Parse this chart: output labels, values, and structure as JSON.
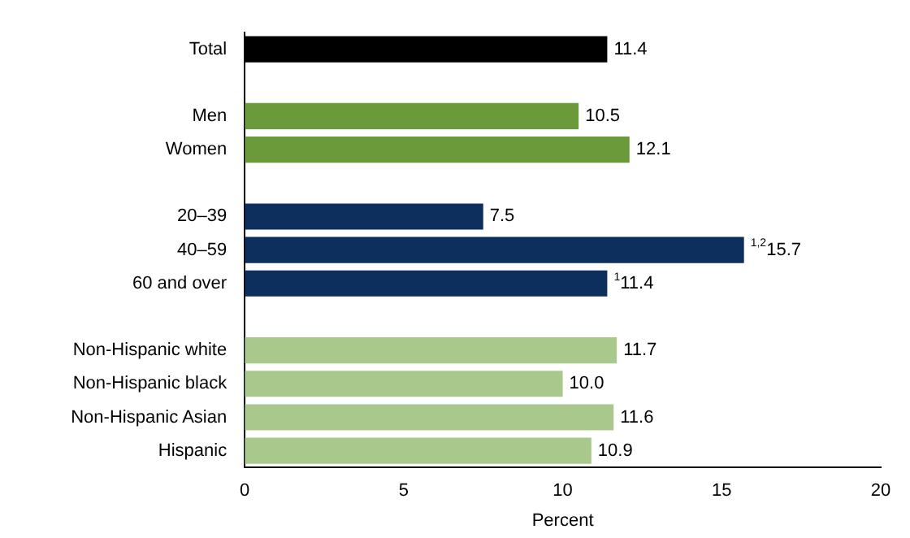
{
  "chart_data": {
    "type": "bar",
    "orientation": "horizontal",
    "xlabel": "Percent",
    "categories": [
      "Total",
      null,
      "Men",
      "Women",
      null,
      "20–39",
      "40–59",
      "60 and over",
      null,
      "Non-Hispanic white",
      "Non-Hispanic black",
      "Non-Hispanic Asian",
      "Hispanic"
    ],
    "values": [
      11.4,
      null,
      10.5,
      12.1,
      null,
      7.5,
      15.7,
      11.4,
      null,
      11.7,
      10.0,
      11.6,
      10.9
    ],
    "colors": [
      "#000000",
      null,
      "#6a9a3a",
      "#6a9a3a",
      null,
      "#0c2f5e",
      "#0c2f5e",
      "#0c2f5e",
      null,
      "#a9c98c",
      "#a9c98c",
      "#a9c98c",
      "#a9c98c"
    ],
    "value_labels": [
      "11.4",
      null,
      "10.5",
      "12.1",
      null,
      "7.5",
      "$^{1,2}$15.7",
      "$^{1}$11.4",
      null,
      "11.7",
      "10.0",
      "11.6",
      "10.9"
    ],
    "xlim": [
      0,
      20
    ],
    "xticks": [
      0,
      5,
      10,
      15,
      20
    ],
    "grid": false,
    "legend": false
  }
}
